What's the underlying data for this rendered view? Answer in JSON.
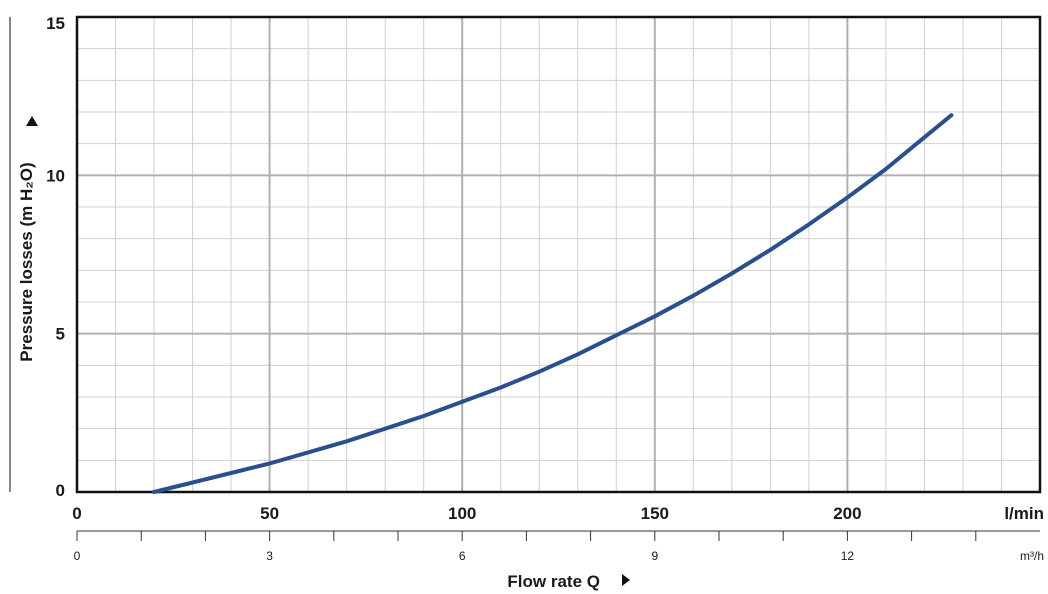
{
  "chart_data": {
    "type": "line",
    "title": "",
    "ylabel": "Pressure losses  (m H₂O)",
    "xlabel": "Flow rate  Q",
    "x_unit_primary": "l/min",
    "x_unit_secondary": "m³/h",
    "xlim": [
      0,
      250
    ],
    "ylim": [
      0,
      15
    ],
    "x_ticks_primary": [
      "0",
      "50",
      "100",
      "150",
      "200"
    ],
    "x_ticks_secondary": [
      "0",
      "3",
      "6",
      "9",
      "12"
    ],
    "y_ticks": [
      "0",
      "5",
      "10",
      "15"
    ],
    "grid": true,
    "legend": "none",
    "line_color": "#2b4f8e",
    "series": [
      {
        "x": [
          20,
          30,
          40,
          50,
          60,
          70,
          80,
          90,
          100,
          110,
          120,
          130,
          140,
          150,
          160,
          170,
          180,
          190,
          200,
          210,
          220,
          227
        ],
        "y": [
          0.0,
          0.3,
          0.6,
          0.9,
          1.25,
          1.6,
          2.0,
          2.4,
          2.85,
          3.3,
          3.8,
          4.35,
          4.95,
          5.55,
          6.2,
          6.9,
          7.65,
          8.45,
          9.3,
          10.2,
          11.2,
          11.9
        ]
      }
    ]
  }
}
